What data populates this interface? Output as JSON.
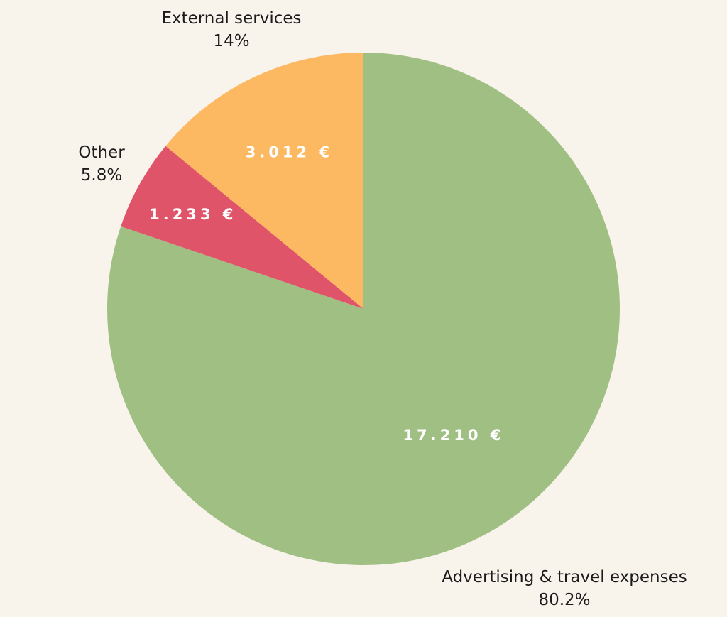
{
  "chart_data": {
    "type": "pie",
    "title": "",
    "start_angle_deg": 0,
    "direction": "clockwise",
    "slices": [
      {
        "name": "Advertising & travel expenses",
        "value": 17210,
        "value_label": "17.210 €",
        "percent": 80.2,
        "percent_label": "80.2%",
        "color": "#a0bf83"
      },
      {
        "name": "Other",
        "value": 1233,
        "value_label": "1.233 €",
        "percent": 5.8,
        "percent_label": "5.8%",
        "color": "#e0546a"
      },
      {
        "name": "External services",
        "value": 3012,
        "value_label": "3.012 €",
        "percent": 14,
        "percent_label": "14%",
        "color": "#fdb862"
      }
    ]
  }
}
